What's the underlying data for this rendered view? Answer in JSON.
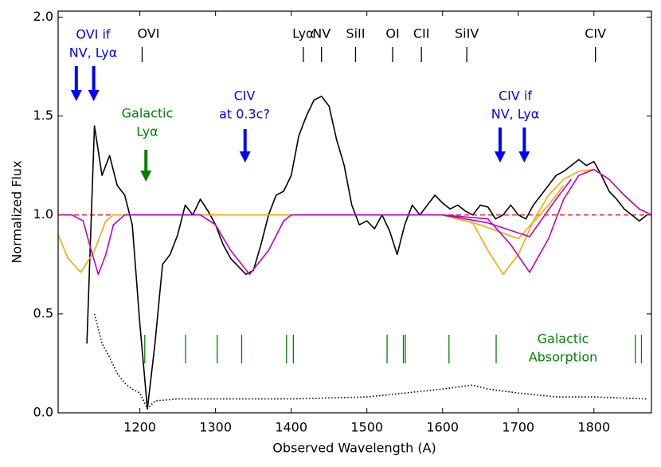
{
  "chart_data": {
    "type": "line",
    "xlabel": "Observed Wavelength (A)",
    "ylabel": "Normalized Flux",
    "xlim": [
      1092,
      1876
    ],
    "ylim": [
      0,
      2.03
    ],
    "xticks": [
      1200,
      1300,
      1400,
      1500,
      1600,
      1700,
      1800
    ],
    "yticks": [
      {
        "value": 0,
        "label": "0.0"
      },
      {
        "value": 0.5,
        "label": "0.5"
      },
      {
        "value": 1,
        "label": "1.0"
      },
      {
        "value": 1.5,
        "label": "1.5"
      },
      {
        "value": 2,
        "label": "2.0"
      }
    ],
    "reference_line": {
      "value": 1.0,
      "color": "#e8302a",
      "style": "dashed"
    },
    "series": [
      {
        "color": "#000000",
        "style": "solid",
        "x": [
          1130,
          1140,
          1150,
          1160,
          1170,
          1180,
          1190,
          1200,
          1210,
          1220,
          1230,
          1240,
          1250,
          1260,
          1270,
          1280,
          1290,
          1300,
          1310,
          1320,
          1330,
          1340,
          1350,
          1360,
          1370,
          1380,
          1390,
          1400,
          1410,
          1420,
          1430,
          1440,
          1450,
          1460,
          1470,
          1480,
          1490,
          1500,
          1510,
          1520,
          1530,
          1540,
          1550,
          1560,
          1570,
          1580,
          1590,
          1600,
          1610,
          1620,
          1630,
          1640,
          1650,
          1660,
          1670,
          1680,
          1690,
          1700,
          1710,
          1720,
          1730,
          1740,
          1750,
          1760,
          1770,
          1780,
          1790,
          1800,
          1810,
          1820,
          1830,
          1840,
          1850,
          1860,
          1870
        ],
        "values": [
          0.35,
          1.45,
          1.2,
          1.3,
          1.15,
          1.1,
          0.95,
          0.45,
          0.02,
          0.35,
          0.75,
          0.8,
          0.9,
          1.05,
          1.0,
          1.08,
          1.02,
          0.95,
          0.85,
          0.78,
          0.74,
          0.7,
          0.72,
          0.85,
          1.0,
          1.1,
          1.12,
          1.2,
          1.4,
          1.5,
          1.58,
          1.6,
          1.55,
          1.38,
          1.25,
          1.05,
          0.95,
          0.97,
          0.93,
          1.0,
          0.92,
          0.8,
          0.95,
          1.05,
          1.0,
          1.05,
          1.1,
          1.06,
          1.03,
          1.05,
          1.02,
          1.0,
          1.05,
          1.04,
          0.98,
          1.0,
          1.05,
          1.0,
          0.98,
          1.05,
          1.1,
          1.15,
          1.2,
          1.22,
          1.25,
          1.28,
          1.25,
          1.27,
          1.2,
          1.12,
          1.08,
          1.03,
          1.0,
          0.97,
          1.0
        ]
      },
      {
        "color": "#000000",
        "style": "dotted",
        "x": [
          1140,
          1150,
          1160,
          1170,
          1180,
          1190,
          1200,
          1210,
          1220,
          1250,
          1300,
          1400,
          1500,
          1550,
          1600,
          1640,
          1660,
          1700,
          1750,
          1800,
          1870
        ],
        "values": [
          0.5,
          0.35,
          0.28,
          0.2,
          0.15,
          0.12,
          0.1,
          0.02,
          0.06,
          0.07,
          0.07,
          0.07,
          0.08,
          0.1,
          0.12,
          0.14,
          0.12,
          0.1,
          0.08,
          0.08,
          0.07
        ]
      },
      {
        "color": "#ffa500",
        "style": "solid",
        "x": [
          1092,
          1105,
          1122,
          1140,
          1155,
          1165,
          1600,
          1640,
          1660,
          1680,
          1700,
          1720,
          1740,
          1760,
          1780,
          1800,
          1820,
          1840,
          1860,
          1876
        ],
        "values": [
          0.9,
          0.78,
          0.71,
          0.82,
          0.97,
          1.0,
          1.0,
          0.96,
          0.82,
          0.7,
          0.8,
          0.97,
          1.1,
          1.18,
          1.22,
          1.23,
          1.18,
          1.1,
          1.03,
          1.0
        ]
      },
      {
        "color": "#ffa500",
        "style": "solid",
        "x": [
          1600,
          1650,
          1700,
          1740,
          1760
        ],
        "values": [
          1.0,
          0.95,
          0.88,
          1.05,
          1.15
        ]
      },
      {
        "color": "#bf00bf",
        "style": "solid",
        "x": [
          1092,
          1110,
          1125,
          1135,
          1145,
          1155,
          1165,
          1180,
          1280,
          1300,
          1320,
          1345,
          1370,
          1390,
          1400,
          1600,
          1660,
          1690,
          1715,
          1740,
          1760,
          1780,
          1800,
          1820,
          1840,
          1860,
          1876
        ],
        "values": [
          1.0,
          1.0,
          0.97,
          0.83,
          0.7,
          0.8,
          0.95,
          1.0,
          1.0,
          0.95,
          0.82,
          0.7,
          0.82,
          0.97,
          1.0,
          1.0,
          0.98,
          0.85,
          0.71,
          0.88,
          1.08,
          1.2,
          1.23,
          1.18,
          1.1,
          1.03,
          1.0
        ]
      },
      {
        "color": "#bf00bf",
        "style": "solid",
        "x": [
          1600,
          1660,
          1715,
          1750,
          1770
        ],
        "values": [
          1.0,
          0.96,
          0.89,
          1.08,
          1.18
        ]
      }
    ],
    "line_markers": [
      {
        "label": "OVI",
        "x": 1203
      },
      {
        "label": "Lyα",
        "x": 1416
      },
      {
        "label": "NV",
        "x": 1440
      },
      {
        "label": "SiII",
        "x": 1485
      },
      {
        "label": "OI",
        "x": 1534
      },
      {
        "label": "CII",
        "x": 1572
      },
      {
        "label": "SiIV",
        "x": 1632
      },
      {
        "label": "CIV",
        "x": 1802
      }
    ],
    "galactic_lines": {
      "color": "#008000",
      "x": [
        1206.5,
        1260.4,
        1302.2,
        1334.5,
        1393.8,
        1402.8,
        1526.7,
        1548.2,
        1550.8,
        1608.5,
        1670.8,
        1854.7,
        1862.8
      ]
    },
    "annotations": [
      {
        "text": [
          "OVI if",
          "NV, Lyα"
        ],
        "color": "#0000ff",
        "arrows": [
          1116,
          1139
        ]
      },
      {
        "text": [
          "Galactic",
          "Lyα"
        ],
        "color": "#008000",
        "arrows": [
          1208
        ]
      },
      {
        "text": [
          "CIV",
          "at 0.3c?"
        ],
        "color": "#0000ff",
        "arrows": [
          1339
        ]
      },
      {
        "text": [
          "CIV if",
          "NV, Lyα"
        ],
        "color": "#0000ff",
        "arrows": [
          1676,
          1708
        ]
      },
      {
        "text": [
          "Galactic",
          "Absorption"
        ],
        "color": "#008000",
        "arrows": []
      }
    ]
  }
}
